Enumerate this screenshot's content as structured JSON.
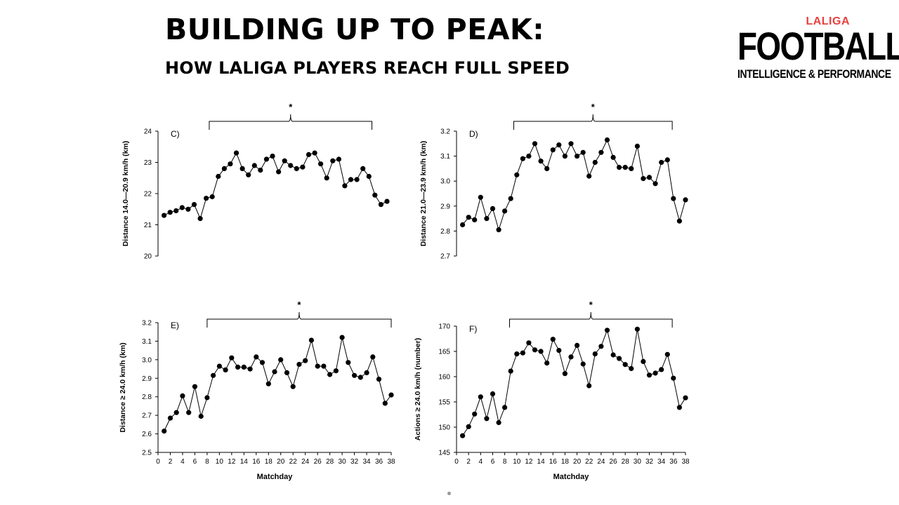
{
  "header": {
    "title": "BUILDING UP TO PEAK:",
    "subtitle": "HOW LALIGA PLAYERS REACH FULL SPEED"
  },
  "logo": {
    "top": "LALIGA",
    "main": "FOOTBALL",
    "sub": "INTELLIGENCE & PERFORMANCE",
    "accent_color": "#e8413f"
  },
  "chart_data": [
    {
      "type": "line",
      "panel_label": "C)",
      "ylabel": "Distance 14.0—20.9 km/h (km)",
      "xlabel": "",
      "ylim": [
        20,
        24
      ],
      "yticks": [
        "20",
        "21",
        "22",
        "23",
        "24"
      ],
      "x": [
        1,
        2,
        3,
        4,
        5,
        6,
        7,
        8,
        9,
        10,
        11,
        12,
        13,
        14,
        15,
        16,
        17,
        18,
        19,
        20,
        21,
        22,
        23,
        24,
        25,
        26,
        27,
        28,
        29,
        30,
        31,
        32,
        33,
        34,
        35,
        36,
        37,
        38
      ],
      "values": [
        21.3,
        21.4,
        21.45,
        21.55,
        21.5,
        21.65,
        21.2,
        21.85,
        21.9,
        22.55,
        22.8,
        22.95,
        23.3,
        22.8,
        22.6,
        22.9,
        22.75,
        23.1,
        23.2,
        22.7,
        23.05,
        22.9,
        22.8,
        22.85,
        23.25,
        23.3,
        22.95,
        22.5,
        23.05,
        23.1,
        22.25,
        22.45,
        22.45,
        22.8,
        22.55,
        21.95,
        21.65,
        21.75
      ],
      "bracket": [
        8.5,
        35.5
      ],
      "annotation": "*"
    },
    {
      "type": "line",
      "panel_label": "D)",
      "ylabel": "Distance 21.0—23.9 km/h (km)",
      "xlabel": "",
      "ylim": [
        2.7,
        3.2
      ],
      "yticks": [
        "2.7",
        "2.8",
        "2.9",
        "3.0",
        "3.1",
        "3.2"
      ],
      "x": [
        1,
        2,
        3,
        4,
        5,
        6,
        7,
        8,
        9,
        10,
        11,
        12,
        13,
        14,
        15,
        16,
        17,
        18,
        19,
        20,
        21,
        22,
        23,
        24,
        25,
        26,
        27,
        28,
        29,
        30,
        31,
        32,
        33,
        34,
        35,
        36,
        37,
        38
      ],
      "values": [
        2.825,
        2.855,
        2.845,
        2.935,
        2.85,
        2.89,
        2.805,
        2.88,
        2.93,
        3.025,
        3.09,
        3.1,
        3.15,
        3.08,
        3.05,
        3.125,
        3.145,
        3.1,
        3.15,
        3.1,
        3.115,
        3.02,
        3.075,
        3.115,
        3.165,
        3.095,
        3.055,
        3.055,
        3.05,
        3.14,
        3.01,
        3.015,
        2.99,
        3.075,
        3.085,
        2.93,
        2.84,
        2.925
      ],
      "bracket": [
        9.5,
        35.8
      ],
      "annotation": "*"
    },
    {
      "type": "line",
      "panel_label": "E)",
      "ylabel": "Distance ≥ 24.0  km/h (km)",
      "xlabel": "Matchday",
      "ylim": [
        2.5,
        3.2
      ],
      "yticks": [
        "2.5",
        "2.6",
        "2.7",
        "2.8",
        "2.9",
        "3.0",
        "3.1",
        "3.2"
      ],
      "x": [
        1,
        2,
        3,
        4,
        5,
        6,
        7,
        8,
        9,
        10,
        11,
        12,
        13,
        14,
        15,
        16,
        17,
        18,
        19,
        20,
        21,
        22,
        23,
        24,
        25,
        26,
        27,
        28,
        29,
        30,
        31,
        32,
        33,
        34,
        35,
        36,
        37,
        38
      ],
      "values": [
        2.615,
        2.685,
        2.715,
        2.805,
        2.715,
        2.855,
        2.695,
        2.795,
        2.915,
        2.965,
        2.945,
        3.01,
        2.96,
        2.96,
        2.95,
        3.015,
        2.985,
        2.87,
        2.935,
        3.0,
        2.93,
        2.855,
        2.975,
        2.995,
        3.105,
        2.965,
        2.965,
        2.92,
        2.94,
        3.12,
        2.985,
        2.915,
        2.905,
        2.93,
        3.015,
        2.895,
        2.765,
        2.81
      ],
      "xticks": [
        "0",
        "2",
        "4",
        "6",
        "8",
        "10",
        "12",
        "14",
        "16",
        "18",
        "20",
        "22",
        "24",
        "26",
        "28",
        "30",
        "32",
        "34",
        "36",
        "38"
      ],
      "bracket": [
        8.0,
        38.0
      ],
      "annotation": "*"
    },
    {
      "type": "line",
      "panel_label": "F)",
      "ylabel": "Actions ≥ 24.0 km/h (number)",
      "xlabel": "Matchday",
      "ylim": [
        145,
        170
      ],
      "yticks": [
        "145",
        "150",
        "155",
        "160",
        "165",
        "170"
      ],
      "x": [
        1,
        2,
        3,
        4,
        5,
        6,
        7,
        8,
        9,
        10,
        11,
        12,
        13,
        14,
        15,
        16,
        17,
        18,
        19,
        20,
        21,
        22,
        23,
        24,
        25,
        26,
        27,
        28,
        29,
        30,
        31,
        32,
        33,
        34,
        35,
        36,
        37,
        38
      ],
      "values": [
        148.3,
        150.1,
        152.6,
        156.0,
        151.7,
        156.6,
        150.9,
        153.9,
        161.1,
        164.5,
        164.7,
        166.7,
        165.3,
        165.0,
        162.7,
        167.4,
        165.2,
        160.6,
        163.9,
        166.2,
        162.5,
        158.2,
        164.5,
        166.0,
        169.2,
        164.3,
        163.6,
        162.4,
        161.6,
        169.4,
        163.0,
        160.3,
        160.7,
        161.4,
        164.4,
        159.7,
        153.9,
        155.8
      ],
      "xticks": [
        "0",
        "2",
        "4",
        "6",
        "8",
        "10",
        "12",
        "14",
        "16",
        "18",
        "20",
        "22",
        "24",
        "26",
        "28",
        "30",
        "32",
        "34",
        "36",
        "38"
      ],
      "bracket": [
        8.8,
        35.8
      ],
      "annotation": "*"
    }
  ]
}
